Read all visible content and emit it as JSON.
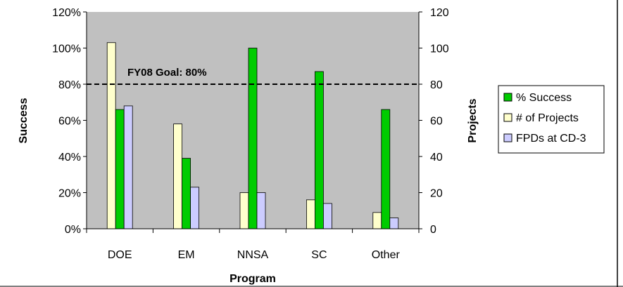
{
  "chart_data": {
    "type": "bar",
    "categories": [
      "DOE",
      "EM",
      "NNSA",
      "SC",
      "Other"
    ],
    "series": [
      {
        "name": "# of Projects",
        "axis": "right",
        "color": "#FFFFCC",
        "values": [
          103,
          58,
          20,
          16,
          9
        ]
      },
      {
        "name": "% Success",
        "axis": "left",
        "color": "#00CC00",
        "values": [
          0.66,
          0.39,
          1.0,
          0.87,
          0.66
        ]
      },
      {
        "name": "FPDs at CD-3",
        "axis": "right",
        "color": "#CCCCFF",
        "values": [
          68,
          23,
          20,
          14,
          6
        ]
      }
    ],
    "xlabel": "Program",
    "ylabel_left": "Success",
    "ylabel_right": "Projects",
    "ylim_left": [
      0,
      1.2
    ],
    "ylim_right": [
      0,
      120
    ],
    "yticks_left": [
      "0%",
      "20%",
      "40%",
      "60%",
      "80%",
      "100%",
      "120%"
    ],
    "yticks_right": [
      "0",
      "20",
      "40",
      "60",
      "80",
      "100",
      "120"
    ],
    "legend_placement": "right",
    "plot_background": "#C0C0C0",
    "goal_line": {
      "value": 0.8,
      "label": "FY08 Goal: 80%",
      "style": "dashed"
    }
  }
}
